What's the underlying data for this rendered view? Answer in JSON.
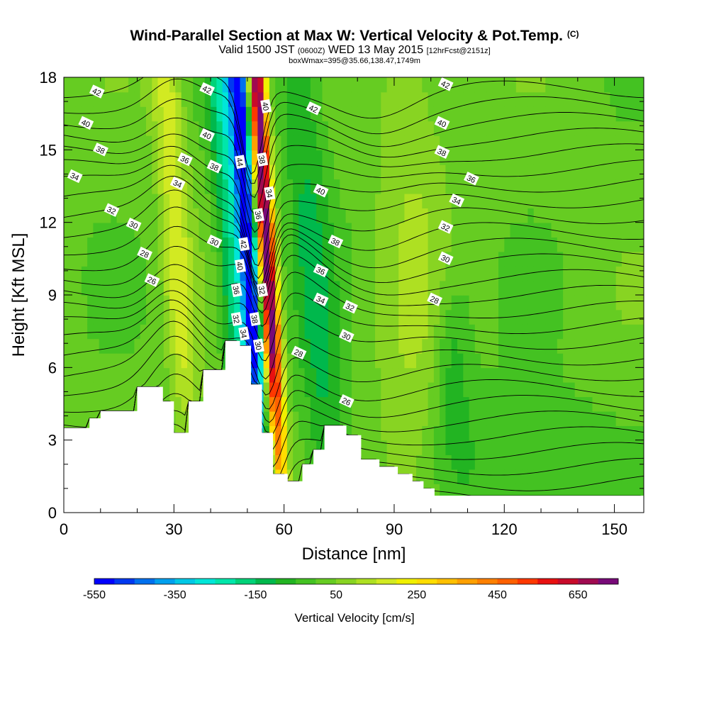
{
  "titles": {
    "line1_main": "Wind-Parallel Section at Max W: Vertical Velocity & Pot.Temp.",
    "line1_mark": "(C)",
    "line2_a": "Valid 1500 JST",
    "line2_b": "(0600Z)",
    "line2_c": "WED 13 May 2015",
    "line2_d": "[12hrFcst@2151z]",
    "line3": "boxWmax=395@35.66,138.47,1749m"
  },
  "chart_data": {
    "type": "heatmap",
    "title": "Wind-Parallel Section at Max W: Vertical Velocity & Pot.Temp.",
    "xlabel": "Distance [nm]",
    "ylabel": "Height [Kft MSL]",
    "xlim": [
      0,
      158
    ],
    "ylim": [
      0,
      18
    ],
    "x_ticks": [
      0,
      30,
      60,
      90,
      120,
      150
    ],
    "y_ticks": [
      0,
      3,
      6,
      9,
      12,
      15,
      18
    ],
    "colorbar": {
      "label": "Vertical Velocity [cm/s]",
      "min": -550,
      "max": 750,
      "step": 50,
      "tick_labels": [
        -550,
        -350,
        -150,
        50,
        250,
        450,
        650
      ],
      "colors": [
        "#0000ff",
        "#0038f0",
        "#0070ee",
        "#00a0ee",
        "#00c8e6",
        "#00e6d8",
        "#00e6aa",
        "#00d278",
        "#00b84c",
        "#22b422",
        "#44c222",
        "#66cc22",
        "#88d422",
        "#aee022",
        "#d2ea22",
        "#f0f000",
        "#ffdd00",
        "#ffc000",
        "#ffa000",
        "#ff8000",
        "#ff6000",
        "#ff3800",
        "#e81010",
        "#c80a2a",
        "#a00a50",
        "#780a78"
      ]
    },
    "terrain_profile_x": [
      0,
      7,
      10,
      20,
      27,
      30,
      34,
      38,
      44,
      48,
      51,
      54,
      57,
      61,
      65,
      68,
      71,
      77,
      81,
      86,
      91,
      95,
      98,
      101,
      158
    ],
    "terrain_profile_kft": [
      3.5,
      3.9,
      4.2,
      5.2,
      4.6,
      3.3,
      4.6,
      5.9,
      7.1,
      6.9,
      5.3,
      3.3,
      1.6,
      1.3,
      2.0,
      2.6,
      3.6,
      3.2,
      2.2,
      1.9,
      1.6,
      1.3,
      1.0,
      0.7,
      0.3
    ],
    "updraft_axis": {
      "x_at_surface": 58,
      "x_at_top": 51,
      "peak_cm_s": 750,
      "downdraft_peak_cm_s": -550
    },
    "isentropes_K": [
      28,
      30,
      32,
      34,
      36,
      38,
      40,
      42
    ],
    "isentrope_labels": [
      {
        "text": "42",
        "x": 9,
        "y": 17.4
      },
      {
        "text": "40",
        "x": 6,
        "y": 16.1
      },
      {
        "text": "38",
        "x": 10,
        "y": 15.0
      },
      {
        "text": "34",
        "x": 3,
        "y": 13.9
      },
      {
        "text": "32",
        "x": 13,
        "y": 12.5
      },
      {
        "text": "30",
        "x": 19,
        "y": 11.9
      },
      {
        "text": "28",
        "x": 22,
        "y": 10.7
      },
      {
        "text": "26",
        "x": 24,
        "y": 9.6
      },
      {
        "text": "42",
        "x": 39,
        "y": 17.5
      },
      {
        "text": "40",
        "x": 39,
        "y": 15.6
      },
      {
        "text": "36",
        "x": 33,
        "y": 14.6
      },
      {
        "text": "38",
        "x": 41,
        "y": 14.3
      },
      {
        "text": "34",
        "x": 31,
        "y": 13.6
      },
      {
        "text": "30",
        "x": 41,
        "y": 11.2
      },
      {
        "text": "44",
        "x": 48,
        "y": 14.5
      },
      {
        "text": "42",
        "x": 49,
        "y": 11.1
      },
      {
        "text": "40",
        "x": 48,
        "y": 10.2
      },
      {
        "text": "36",
        "x": 47,
        "y": 9.2
      },
      {
        "text": "32",
        "x": 47,
        "y": 8.0
      },
      {
        "text": "34",
        "x": 49,
        "y": 7.4
      },
      {
        "text": "40",
        "x": 55,
        "y": 16.8
      },
      {
        "text": "38",
        "x": 54,
        "y": 14.6
      },
      {
        "text": "34",
        "x": 56,
        "y": 13.2
      },
      {
        "text": "36",
        "x": 53,
        "y": 12.3
      },
      {
        "text": "32",
        "x": 54,
        "y": 9.2
      },
      {
        "text": "38",
        "x": 52,
        "y": 8.0
      },
      {
        "text": "30",
        "x": 53,
        "y": 6.9
      },
      {
        "text": "42",
        "x": 68,
        "y": 16.7
      },
      {
        "text": "40",
        "x": 70,
        "y": 13.3
      },
      {
        "text": "38",
        "x": 74,
        "y": 11.2
      },
      {
        "text": "36",
        "x": 70,
        "y": 10.0
      },
      {
        "text": "34",
        "x": 70,
        "y": 8.8
      },
      {
        "text": "32",
        "x": 78,
        "y": 8.5
      },
      {
        "text": "30",
        "x": 77,
        "y": 7.3
      },
      {
        "text": "28",
        "x": 64,
        "y": 6.6
      },
      {
        "text": "26",
        "x": 77,
        "y": 4.6
      },
      {
        "text": "42",
        "x": 104,
        "y": 17.7
      },
      {
        "text": "40",
        "x": 103,
        "y": 16.1
      },
      {
        "text": "38",
        "x": 103,
        "y": 14.9
      },
      {
        "text": "36",
        "x": 111,
        "y": 13.8
      },
      {
        "text": "34",
        "x": 107,
        "y": 12.9
      },
      {
        "text": "32",
        "x": 104,
        "y": 11.8
      },
      {
        "text": "30",
        "x": 104,
        "y": 10.5
      },
      {
        "text": "28",
        "x": 101,
        "y": 8.8
      }
    ]
  }
}
